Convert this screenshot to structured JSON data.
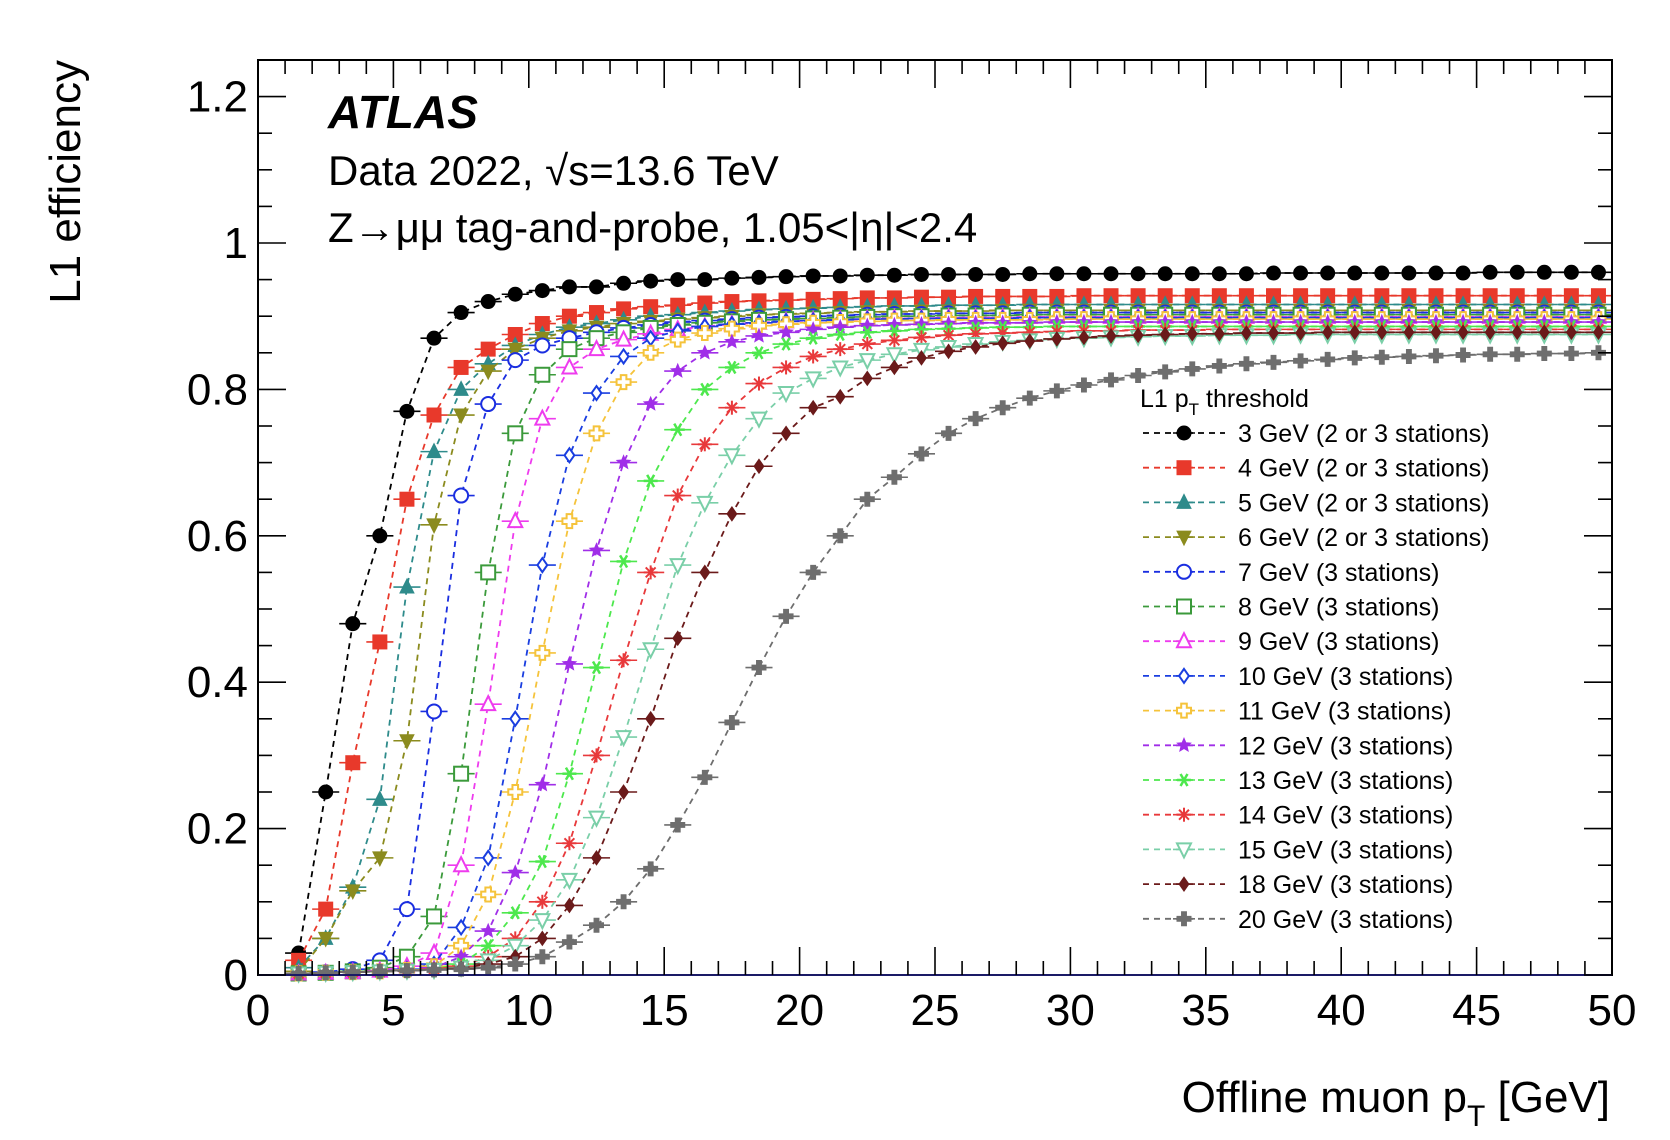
{
  "chart_data": {
    "type": "scatter",
    "xlabel": "Offline muon p",
    "xlabel_sub": "T",
    "xlabel_unit": " [GeV]",
    "ylabel": "L1 efficiency",
    "xlim": [
      0,
      50
    ],
    "ylim": [
      0,
      1.25
    ],
    "x_ticks": [
      "0",
      "5",
      "10",
      "15",
      "20",
      "25",
      "30",
      "35",
      "40",
      "45",
      "50"
    ],
    "y_ticks": [
      "0",
      "0.2",
      "0.4",
      "0.6",
      "0.8",
      "1",
      "1.2"
    ],
    "annotations": {
      "experiment": "ATLAS",
      "line1": "Data 2022, √s=13.6 TeV",
      "line2": "Z→μμ tag-and-probe, 1.05<|η|<2.4"
    },
    "legend": {
      "title": "L1 p",
      "title_sub": "T",
      "title_rest": " threshold",
      "position": "right-middle"
    },
    "x": [
      1.5,
      2.5,
      3.5,
      4.5,
      5.5,
      6.5,
      7.5,
      8.5,
      9.5,
      10.5,
      11.5,
      12.5,
      13.5,
      14.5,
      15.5,
      16.5,
      17.5,
      18.5,
      19.5,
      20.5,
      21.5,
      22.5,
      23.5,
      24.5,
      25.5,
      26.5,
      27.5,
      28.5,
      29.5,
      30.5,
      31.5,
      32.5,
      33.5,
      34.5,
      35.5,
      36.5,
      37.5,
      38.5,
      39.5,
      40.5,
      41.5,
      42.5,
      43.5,
      44.5,
      45.5,
      46.5,
      47.5,
      48.5,
      49.5
    ],
    "series": [
      {
        "name": "3 GeV (2 or 3 stations)",
        "color": "#000000",
        "marker": "circle-filled",
        "values": [
          0.03,
          0.25,
          0.48,
          0.6,
          0.77,
          0.87,
          0.905,
          0.92,
          0.93,
          0.935,
          0.94,
          0.94,
          0.945,
          0.948,
          0.95,
          0.95,
          0.952,
          0.953,
          0.954,
          0.955,
          0.955,
          0.956,
          0.956,
          0.957,
          0.957,
          0.957,
          0.957,
          0.958,
          0.958,
          0.958,
          0.958,
          0.958,
          0.958,
          0.958,
          0.958,
          0.958,
          0.959,
          0.959,
          0.959,
          0.959,
          0.959,
          0.959,
          0.959,
          0.959,
          0.96,
          0.96,
          0.96,
          0.96,
          0.96
        ]
      },
      {
        "name": "4 GeV (2 or 3 stations)",
        "color": "#e8392b",
        "marker": "square-filled",
        "values": [
          0.02,
          0.09,
          0.29,
          0.455,
          0.65,
          0.765,
          0.83,
          0.855,
          0.875,
          0.89,
          0.9,
          0.905,
          0.91,
          0.913,
          0.915,
          0.918,
          0.92,
          0.921,
          0.922,
          0.923,
          0.924,
          0.925,
          0.925,
          0.926,
          0.926,
          0.927,
          0.927,
          0.927,
          0.927,
          0.928,
          0.928,
          0.928,
          0.928,
          0.928,
          0.928,
          0.928,
          0.928,
          0.928,
          0.928,
          0.928,
          0.928,
          0.928,
          0.928,
          0.928,
          0.928,
          0.928,
          0.928,
          0.928,
          0.928
        ]
      },
      {
        "name": "5 GeV (2 or 3 stations)",
        "color": "#2e8b8b",
        "marker": "triangle-up-filled",
        "values": [
          0.01,
          0.05,
          0.12,
          0.24,
          0.53,
          0.715,
          0.8,
          0.835,
          0.86,
          0.875,
          0.885,
          0.89,
          0.895,
          0.9,
          0.902,
          0.905,
          0.907,
          0.909,
          0.91,
          0.911,
          0.912,
          0.913,
          0.914,
          0.914,
          0.915,
          0.915,
          0.915,
          0.916,
          0.916,
          0.916,
          0.916,
          0.916,
          0.916,
          0.916,
          0.916,
          0.916,
          0.916,
          0.916,
          0.916,
          0.916,
          0.916,
          0.916,
          0.916,
          0.916,
          0.916,
          0.916,
          0.916,
          0.916,
          0.916
        ]
      },
      {
        "name": "6 GeV (2 or 3 stations)",
        "color": "#8b8b1e",
        "marker": "triangle-down-filled",
        "values": [
          0.005,
          0.05,
          0.115,
          0.16,
          0.32,
          0.615,
          0.765,
          0.825,
          0.855,
          0.87,
          0.88,
          0.885,
          0.89,
          0.893,
          0.896,
          0.898,
          0.9,
          0.902,
          0.903,
          0.904,
          0.905,
          0.906,
          0.906,
          0.907,
          0.907,
          0.907,
          0.908,
          0.908,
          0.908,
          0.908,
          0.908,
          0.908,
          0.908,
          0.908,
          0.908,
          0.908,
          0.908,
          0.908,
          0.908,
          0.908,
          0.908,
          0.908,
          0.908,
          0.908,
          0.908,
          0.908,
          0.908,
          0.908,
          0.908
        ]
      },
      {
        "name": "7 GeV (3 stations)",
        "color": "#1a2ee0",
        "marker": "circle-open",
        "values": [
          0.002,
          0.004,
          0.008,
          0.02,
          0.09,
          0.36,
          0.655,
          0.78,
          0.84,
          0.86,
          0.87,
          0.878,
          0.884,
          0.888,
          0.892,
          0.894,
          0.896,
          0.898,
          0.899,
          0.9,
          0.901,
          0.902,
          0.903,
          0.903,
          0.904,
          0.904,
          0.904,
          0.905,
          0.905,
          0.905,
          0.905,
          0.905,
          0.905,
          0.905,
          0.905,
          0.905,
          0.905,
          0.905,
          0.905,
          0.905,
          0.905,
          0.905,
          0.905,
          0.905,
          0.905,
          0.905,
          0.905,
          0.905,
          0.905
        ]
      },
      {
        "name": "8 GeV (3 stations)",
        "color": "#3b9a3b",
        "marker": "square-open",
        "values": [
          0.002,
          0.003,
          0.005,
          0.01,
          0.025,
          0.08,
          0.275,
          0.55,
          0.74,
          0.82,
          0.855,
          0.87,
          0.878,
          0.884,
          0.888,
          0.891,
          0.893,
          0.895,
          0.896,
          0.897,
          0.898,
          0.899,
          0.9,
          0.9,
          0.901,
          0.901,
          0.901,
          0.902,
          0.902,
          0.902,
          0.902,
          0.902,
          0.902,
          0.902,
          0.902,
          0.902,
          0.902,
          0.902,
          0.902,
          0.902,
          0.902,
          0.902,
          0.902,
          0.902,
          0.902,
          0.902,
          0.902,
          0.902,
          0.902
        ]
      },
      {
        "name": "9 GeV (3 stations)",
        "color": "#ee3bee",
        "marker": "triangle-up-open",
        "values": [
          0.002,
          0.003,
          0.004,
          0.006,
          0.012,
          0.03,
          0.15,
          0.37,
          0.62,
          0.76,
          0.83,
          0.855,
          0.868,
          0.876,
          0.882,
          0.886,
          0.889,
          0.891,
          0.893,
          0.894,
          0.895,
          0.896,
          0.897,
          0.897,
          0.898,
          0.898,
          0.898,
          0.899,
          0.899,
          0.899,
          0.899,
          0.899,
          0.899,
          0.899,
          0.899,
          0.899,
          0.899,
          0.899,
          0.899,
          0.899,
          0.899,
          0.899,
          0.899,
          0.899,
          0.899,
          0.899,
          0.899,
          0.899,
          0.899
        ]
      },
      {
        "name": "10 GeV (3 stations)",
        "color": "#1a3ee0",
        "marker": "diamond-open",
        "values": [
          0.002,
          0.003,
          0.004,
          0.005,
          0.008,
          0.015,
          0.065,
          0.16,
          0.35,
          0.56,
          0.71,
          0.795,
          0.845,
          0.87,
          0.88,
          0.886,
          0.889,
          0.891,
          0.893,
          0.894,
          0.895,
          0.896,
          0.896,
          0.897,
          0.897,
          0.897,
          0.897,
          0.898,
          0.898,
          0.898,
          0.898,
          0.898,
          0.898,
          0.898,
          0.898,
          0.898,
          0.898,
          0.898,
          0.898,
          0.898,
          0.898,
          0.898,
          0.898,
          0.898,
          0.898,
          0.898,
          0.898,
          0.898,
          0.898
        ]
      },
      {
        "name": "11 GeV (3 stations)",
        "color": "#f5c33b",
        "marker": "cross-open",
        "values": [
          0.002,
          0.003,
          0.004,
          0.005,
          0.007,
          0.012,
          0.04,
          0.11,
          0.25,
          0.44,
          0.62,
          0.74,
          0.81,
          0.85,
          0.868,
          0.877,
          0.883,
          0.887,
          0.889,
          0.891,
          0.892,
          0.893,
          0.894,
          0.894,
          0.895,
          0.895,
          0.895,
          0.895,
          0.896,
          0.896,
          0.896,
          0.896,
          0.896,
          0.896,
          0.896,
          0.896,
          0.896,
          0.896,
          0.896,
          0.896,
          0.896,
          0.896,
          0.896,
          0.896,
          0.896,
          0.896,
          0.896,
          0.896,
          0.896
        ]
      },
      {
        "name": "12 GeV (3 stations)",
        "color": "#a02ee8",
        "marker": "star-filled",
        "values": [
          0.002,
          0.003,
          0.004,
          0.005,
          0.006,
          0.01,
          0.025,
          0.06,
          0.14,
          0.26,
          0.425,
          0.58,
          0.7,
          0.78,
          0.825,
          0.85,
          0.865,
          0.873,
          0.878,
          0.882,
          0.885,
          0.887,
          0.888,
          0.889,
          0.89,
          0.891,
          0.891,
          0.891,
          0.892,
          0.892,
          0.892,
          0.892,
          0.892,
          0.892,
          0.892,
          0.892,
          0.892,
          0.892,
          0.892,
          0.892,
          0.892,
          0.892,
          0.892,
          0.892,
          0.892,
          0.892,
          0.892,
          0.892,
          0.892
        ]
      },
      {
        "name": "13 GeV (3 stations)",
        "color": "#4de84d",
        "marker": "star-open",
        "values": [
          0.002,
          0.003,
          0.004,
          0.005,
          0.006,
          0.008,
          0.015,
          0.04,
          0.085,
          0.155,
          0.275,
          0.42,
          0.565,
          0.675,
          0.745,
          0.8,
          0.83,
          0.85,
          0.862,
          0.87,
          0.875,
          0.878,
          0.88,
          0.882,
          0.883,
          0.884,
          0.885,
          0.885,
          0.886,
          0.886,
          0.886,
          0.886,
          0.886,
          0.886,
          0.886,
          0.886,
          0.886,
          0.886,
          0.886,
          0.886,
          0.886,
          0.886,
          0.886,
          0.886,
          0.886,
          0.886,
          0.886,
          0.886,
          0.886
        ]
      },
      {
        "name": "14 GeV (3 stations)",
        "color": "#e8393b",
        "marker": "asterisk",
        "values": [
          0.002,
          0.003,
          0.004,
          0.005,
          0.006,
          0.008,
          0.012,
          0.025,
          0.05,
          0.1,
          0.18,
          0.3,
          0.43,
          0.55,
          0.655,
          0.725,
          0.775,
          0.808,
          0.83,
          0.845,
          0.855,
          0.862,
          0.867,
          0.871,
          0.874,
          0.876,
          0.877,
          0.878,
          0.879,
          0.88,
          0.88,
          0.881,
          0.881,
          0.881,
          0.882,
          0.882,
          0.882,
          0.882,
          0.882,
          0.882,
          0.882,
          0.882,
          0.882,
          0.882,
          0.882,
          0.882,
          0.882,
          0.882,
          0.882
        ]
      },
      {
        "name": "15 GeV (3 stations)",
        "color": "#7acfa8",
        "marker": "triangle-down-open",
        "values": [
          0.002,
          0.003,
          0.004,
          0.005,
          0.006,
          0.007,
          0.01,
          0.02,
          0.04,
          0.075,
          0.13,
          0.215,
          0.325,
          0.445,
          0.56,
          0.645,
          0.71,
          0.76,
          0.795,
          0.815,
          0.83,
          0.84,
          0.848,
          0.854,
          0.858,
          0.862,
          0.865,
          0.867,
          0.869,
          0.87,
          0.871,
          0.872,
          0.873,
          0.873,
          0.874,
          0.874,
          0.874,
          0.875,
          0.875,
          0.875,
          0.875,
          0.875,
          0.875,
          0.875,
          0.875,
          0.875,
          0.875,
          0.875,
          0.875
        ]
      },
      {
        "name": "18 GeV (3 stations)",
        "color": "#6b1a1a",
        "marker": "diamond-filled",
        "values": [
          0.002,
          0.003,
          0.004,
          0.005,
          0.006,
          0.007,
          0.009,
          0.015,
          0.025,
          0.05,
          0.095,
          0.16,
          0.25,
          0.35,
          0.46,
          0.55,
          0.63,
          0.695,
          0.74,
          0.775,
          0.79,
          0.815,
          0.83,
          0.843,
          0.852,
          0.858,
          0.863,
          0.866,
          0.869,
          0.871,
          0.873,
          0.874,
          0.875,
          0.876,
          0.876,
          0.877,
          0.877,
          0.877,
          0.878,
          0.878,
          0.878,
          0.878,
          0.878,
          0.878,
          0.878,
          0.878,
          0.878,
          0.878,
          0.878
        ]
      },
      {
        "name": "20 GeV (3 stations)",
        "color": "#6e6e6e",
        "marker": "cross-filled",
        "values": [
          0.002,
          0.003,
          0.004,
          0.005,
          0.006,
          0.007,
          0.008,
          0.01,
          0.015,
          0.025,
          0.045,
          0.068,
          0.1,
          0.145,
          0.205,
          0.27,
          0.345,
          0.42,
          0.49,
          0.55,
          0.6,
          0.65,
          0.68,
          0.712,
          0.74,
          0.76,
          0.775,
          0.788,
          0.798,
          0.806,
          0.813,
          0.819,
          0.824,
          0.828,
          0.832,
          0.835,
          0.837,
          0.839,
          0.841,
          0.843,
          0.844,
          0.845,
          0.846,
          0.847,
          0.848,
          0.848,
          0.849,
          0.849,
          0.85
        ]
      }
    ]
  }
}
